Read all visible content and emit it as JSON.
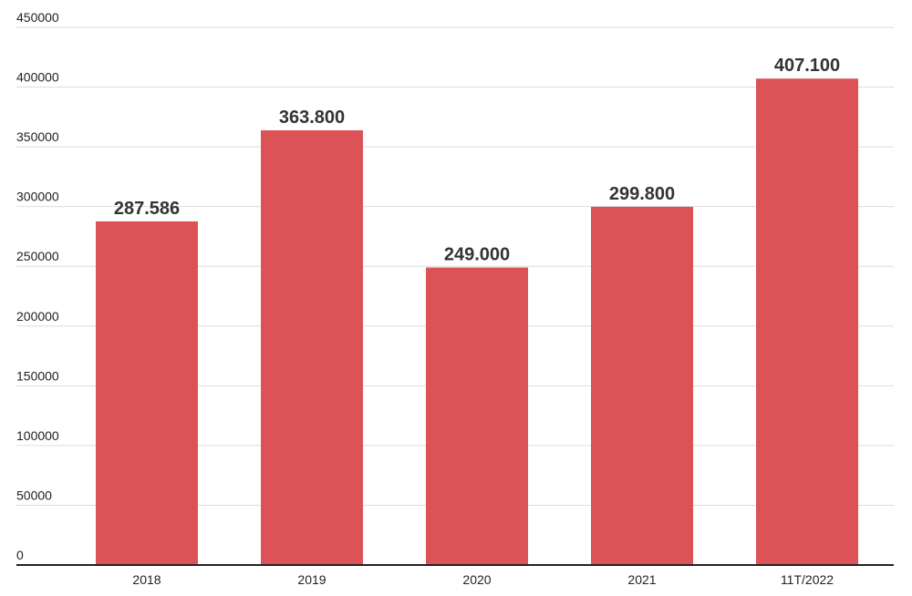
{
  "chart_data": {
    "type": "bar",
    "categories": [
      "2018",
      "2019",
      "2020",
      "2021",
      "11T/2022"
    ],
    "values": [
      287586,
      363800,
      249000,
      299800,
      407100
    ],
    "value_labels": [
      "287.586",
      "363.800",
      "249.000",
      "299.800",
      "407.100"
    ],
    "yticks": [
      0,
      50000,
      100000,
      150000,
      200000,
      250000,
      300000,
      350000,
      400000,
      450000
    ],
    "ytick_labels": [
      "0",
      "50000",
      "100000",
      "150000",
      "200000",
      "250000",
      "300000",
      "350000",
      "400000",
      "450000"
    ],
    "ylim": [
      0,
      450000
    ],
    "grid": true,
    "title": "",
    "xlabel": "",
    "ylabel": "",
    "bar_color": "#dc5256"
  }
}
